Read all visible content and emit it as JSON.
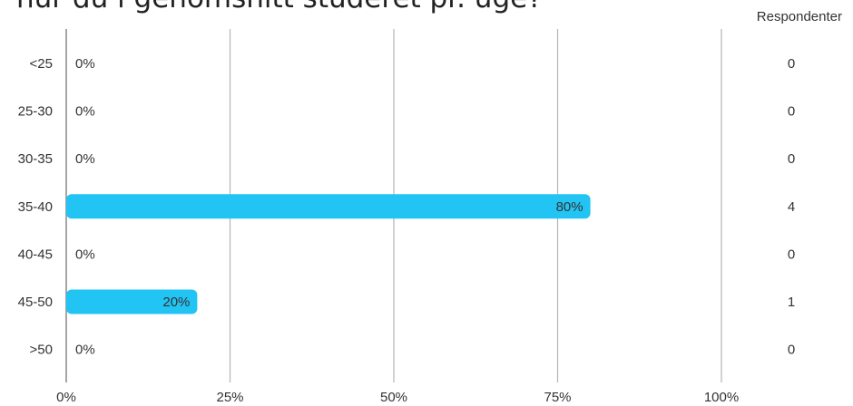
{
  "title": "hur du i genomsnitt studeret pr. uge?",
  "count_header": "Respondenter",
  "chart_data": {
    "type": "bar",
    "orientation": "horizontal",
    "title": "hur du i genomsnitt studeret pr. uge?",
    "categories": [
      "<25",
      "25-30",
      "30-35",
      "35-40",
      "40-45",
      "45-50",
      ">50"
    ],
    "values": [
      0,
      0,
      0,
      80,
      0,
      20,
      0
    ],
    "value_labels": [
      "0%",
      "0%",
      "0%",
      "80%",
      "0%",
      "20%",
      "0%"
    ],
    "counts": [
      0,
      0,
      0,
      4,
      0,
      1,
      0
    ],
    "xlim": [
      0,
      100
    ],
    "x_ticks": [
      "0%",
      "25%",
      "50%",
      "75%",
      "100%"
    ],
    "grid": true,
    "bar_color": "#22c4f3"
  }
}
